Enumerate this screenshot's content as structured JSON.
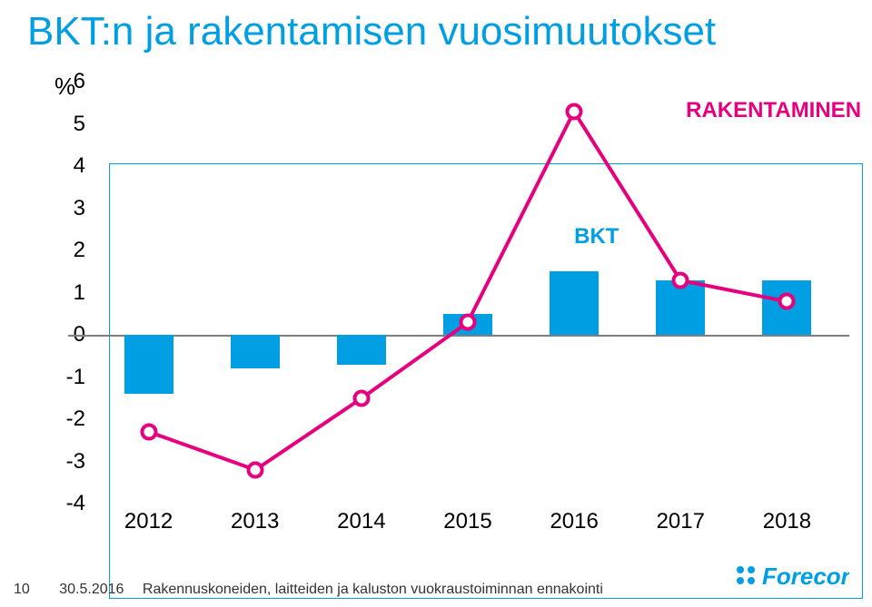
{
  "title": "BKT:n ja rakentamisen vuosimuutokset",
  "chart": {
    "type": "bar+line",
    "y_unit": "%",
    "ylim": [
      -4,
      6
    ],
    "ytick_step": 1,
    "x_categories": [
      "2012",
      "2013",
      "2014",
      "2015",
      "2016",
      "2017",
      "2018"
    ],
    "bar_series": {
      "name": "BKT",
      "values": [
        -1.4,
        -0.8,
        -0.7,
        0.5,
        1.5,
        1.3,
        1.3
      ],
      "color": "#009fe3",
      "bar_width": 0.46
    },
    "line_series": {
      "name": "RAKENTAMINEN",
      "values": [
        -2.3,
        -3.2,
        -1.5,
        0.3,
        5.3,
        1.3,
        0.8
      ],
      "color": "#e6007e",
      "line_width": 4,
      "marker": {
        "shape": "circle",
        "size": 19,
        "fill": "#ffffff",
        "stroke": "#e6007e",
        "stroke_width": 4
      }
    },
    "legend": {
      "bkt": {
        "label": "BKT",
        "color": "#009fe3",
        "fontsize": 24,
        "pos_idx": 4,
        "pos_val": 2.1
      },
      "line": {
        "label": "RAKENTAMINEN",
        "color": "#e6007e",
        "fontsize": 24,
        "pos_idx": 5.05,
        "pos_val": 5.1
      }
    },
    "background_color": "#ffffff",
    "zero_line_color": "#7f7f7f",
    "frame_color": "#009fe3",
    "tick_fontsize": 24,
    "tick_color": "#000000"
  },
  "footer": {
    "page": "10",
    "date": "30.5.2016",
    "caption": "Rakennuskoneiden, laitteiden ja kaluston vuokraustoiminnan ennakointi"
  },
  "logo": {
    "text": "Forecon",
    "color": "#009fe3"
  }
}
